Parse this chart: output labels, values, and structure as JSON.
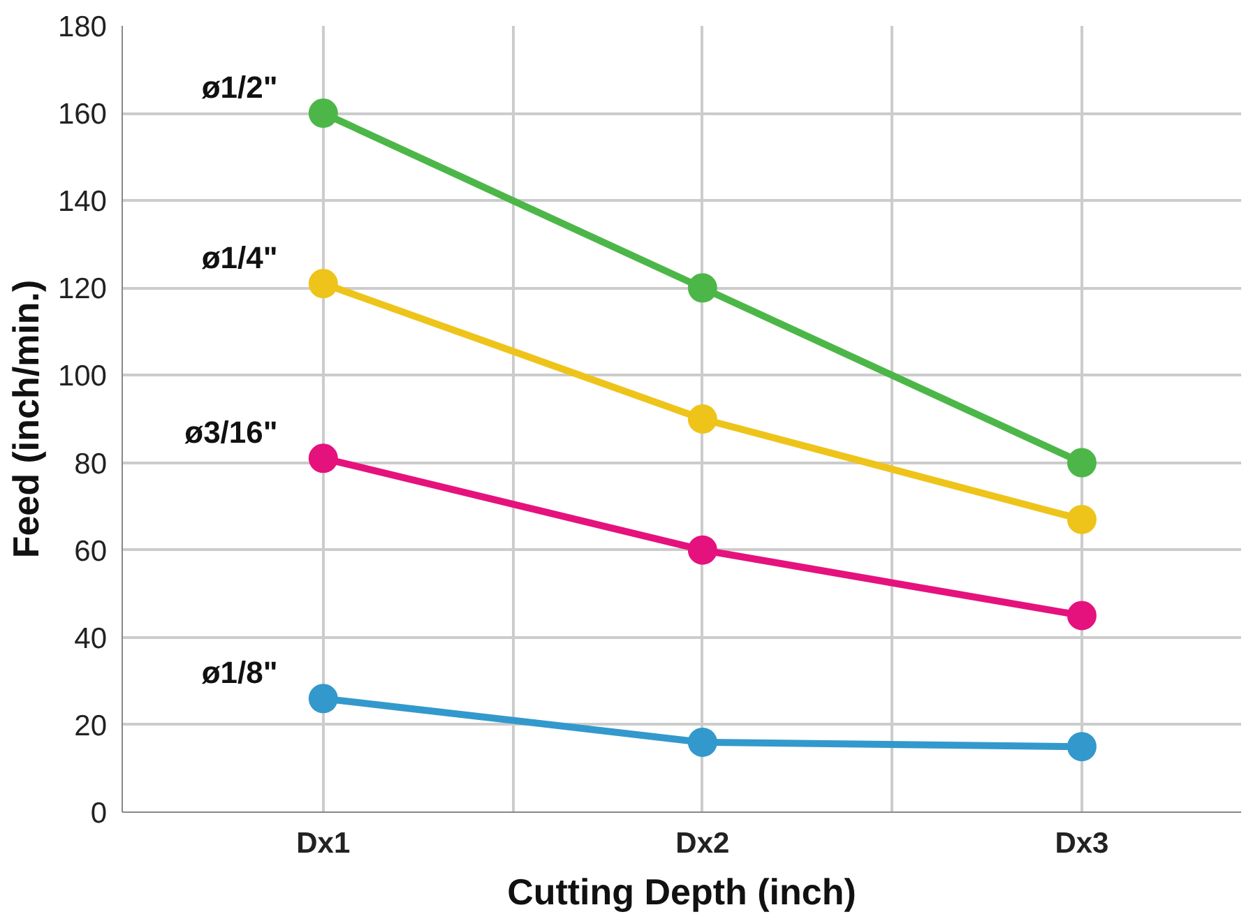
{
  "chart_data": {
    "type": "line",
    "xlabel": "Cutting Depth (inch)",
    "ylabel": "Feed (inch/min.)",
    "categories": [
      "Dx1",
      "Dx2",
      "Dx3"
    ],
    "series": [
      {
        "name": "ø1/2\"",
        "color": "#4cb748",
        "values": [
          160,
          120,
          80
        ]
      },
      {
        "name": "ø1/4\"",
        "color": "#eec41a",
        "values": [
          121,
          90,
          67
        ]
      },
      {
        "name": "ø3/16\"",
        "color": "#e5127e",
        "values": [
          81,
          60,
          45
        ]
      },
      {
        "name": "ø1/8\"",
        "color": "#3399cc",
        "values": [
          26,
          16,
          15
        ]
      }
    ],
    "ylim": [
      0,
      180
    ],
    "yticks": [
      0,
      20,
      40,
      60,
      80,
      100,
      120,
      140,
      160,
      180
    ],
    "grid": true,
    "marker": "circle",
    "line_style": "solid"
  }
}
